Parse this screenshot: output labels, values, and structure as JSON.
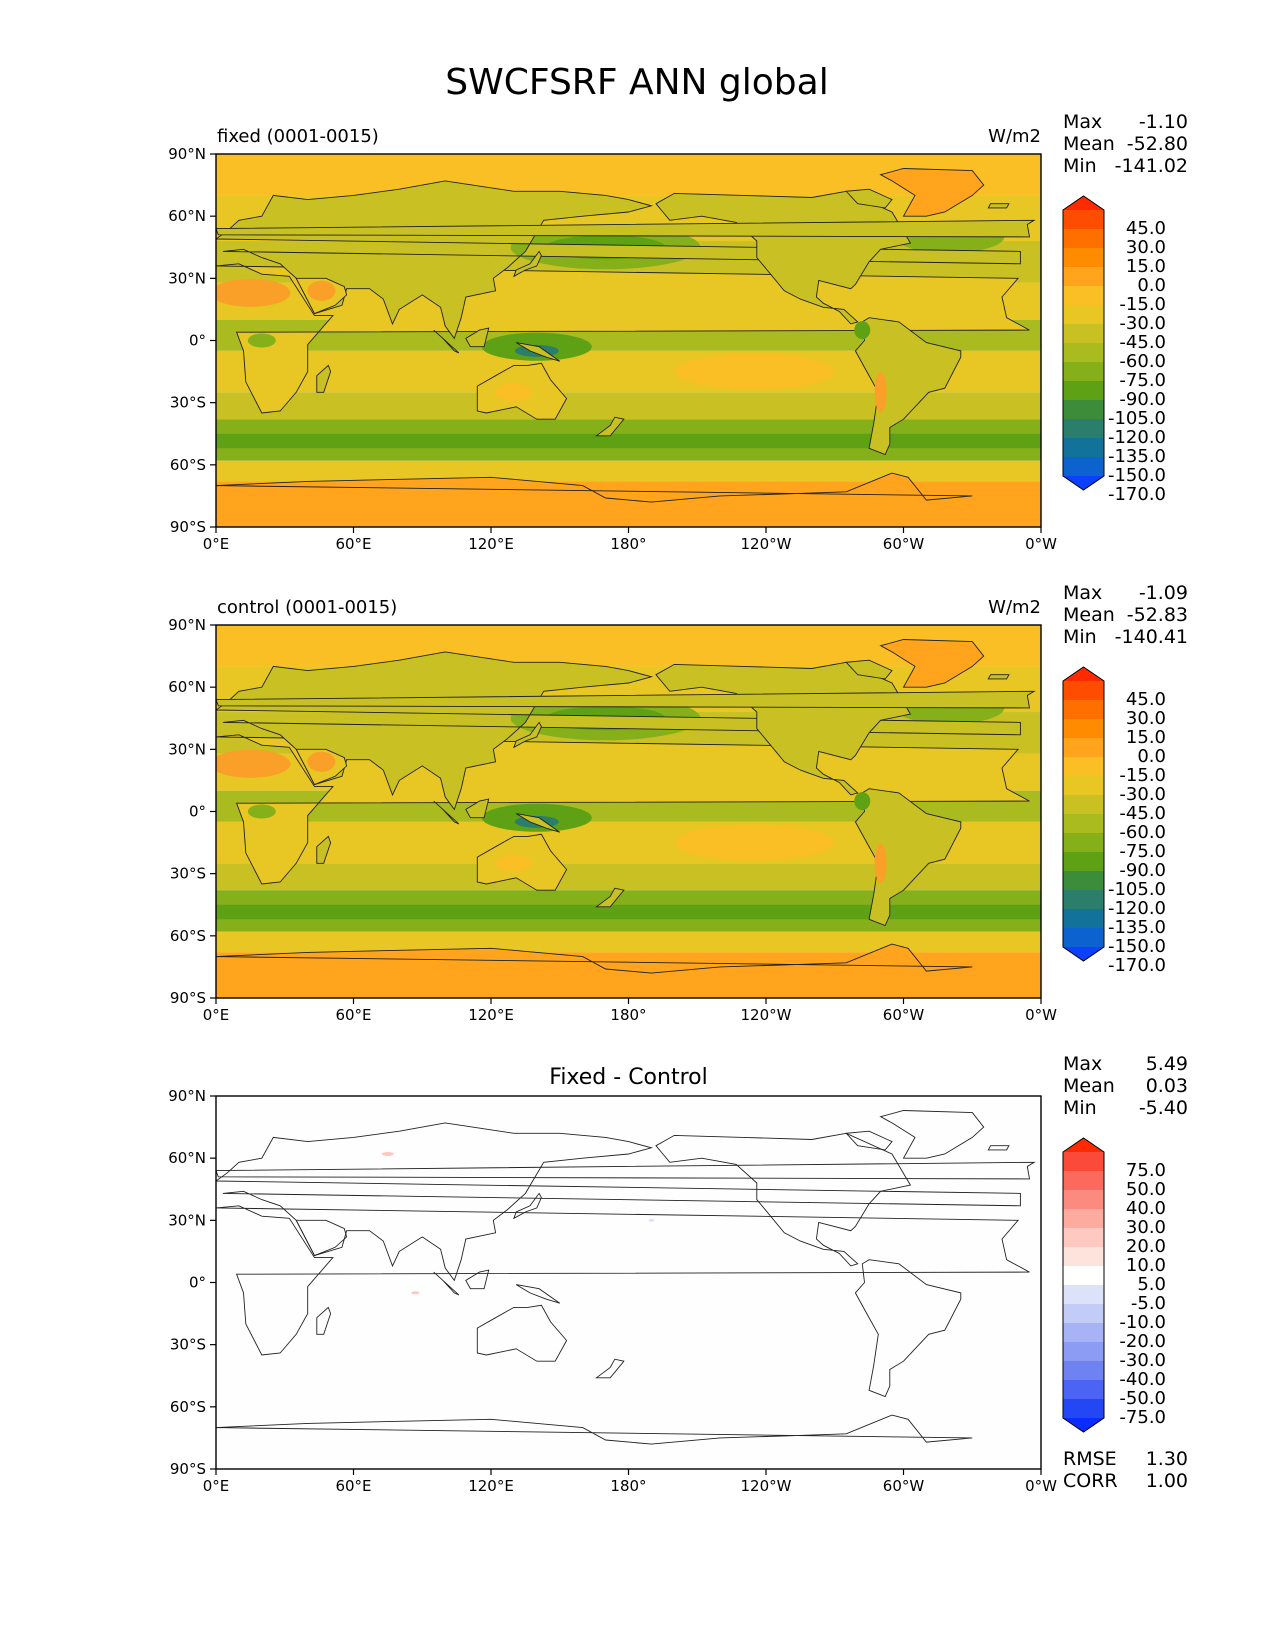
{
  "figure": {
    "title": "SWCFSRF ANN global"
  },
  "panels": [
    {
      "kind": "model",
      "left_label": "fixed (0001-0015)",
      "right_label": "W/m2",
      "center_label": "",
      "stats": [
        {
          "label": "Max",
          "value": "-1.10"
        },
        {
          "label": "Mean",
          "value": "-52.80"
        },
        {
          "label": "Min",
          "value": "-141.02"
        }
      ],
      "footer_stats": []
    },
    {
      "kind": "model",
      "left_label": "control (0001-0015)",
      "right_label": "W/m2",
      "center_label": "",
      "stats": [
        {
          "label": "Max",
          "value": "-1.09"
        },
        {
          "label": "Mean",
          "value": "-52.83"
        },
        {
          "label": "Min",
          "value": "-140.41"
        }
      ],
      "footer_stats": []
    },
    {
      "kind": "diff",
      "left_label": "",
      "right_label": "",
      "center_label": "Fixed - Control",
      "stats": [
        {
          "label": "Max",
          "value": "5.49"
        },
        {
          "label": "Mean",
          "value": "0.03"
        },
        {
          "label": "Min",
          "value": "-5.40"
        }
      ],
      "footer_stats": [
        {
          "label": "RMSE",
          "value": "1.30"
        },
        {
          "label": "CORR",
          "value": "1.00"
        }
      ]
    }
  ],
  "axes": {
    "lat_ticks": [
      "90°N",
      "60°N",
      "30°N",
      "0°",
      "30°S",
      "60°S",
      "90°S"
    ],
    "lon_ticks": [
      "0°E",
      "60°E",
      "120°E",
      "180°",
      "120°W",
      "60°W",
      "0°W"
    ]
  },
  "colorbars": {
    "model": {
      "levels": [
        "45.0",
        "30.0",
        "15.0",
        "0.0",
        "-15.0",
        "-30.0",
        "-45.0",
        "-60.0",
        "-75.0",
        "-90.0",
        "-105.0",
        "-120.0",
        "-135.0",
        "-150.0",
        "-170.0"
      ],
      "colors": [
        "#ff2a00",
        "#ff4d00",
        "#ff6f00",
        "#ff8c00",
        "#ffa41c",
        "#f9bf24",
        "#e8c623",
        "#c9c123",
        "#a9bb1f",
        "#86b01a",
        "#5ea114",
        "#3d8c3a",
        "#2b7e6b",
        "#137299",
        "#0c63cf",
        "#0b40ff"
      ]
    },
    "diff": {
      "levels": [
        "75.0",
        "50.0",
        "40.0",
        "30.0",
        "20.0",
        "10.0",
        "5.0",
        "-5.0",
        "-10.0",
        "-20.0",
        "-30.0",
        "-40.0",
        "-50.0",
        "-75.0"
      ],
      "colors": [
        "#ff2a00",
        "#fb4a3a",
        "#fb6a5c",
        "#fc8a7e",
        "#fdab9f",
        "#fec9c0",
        "#fee3dd",
        "#ffffff",
        "#dde2fb",
        "#c3cbf7",
        "#a7b3f5",
        "#8c9bf3",
        "#6f82f2",
        "#4c64f4",
        "#2447f6",
        "#0a2cff"
      ]
    }
  },
  "map_colors": {
    "ocean_tropics": "#d6c424",
    "ocean_midlat": "#86b01a",
    "storm_track": "#5ea114",
    "polar": "#ffa41c",
    "desert": "#fa9f28",
    "diff_background": "#fefefe"
  }
}
